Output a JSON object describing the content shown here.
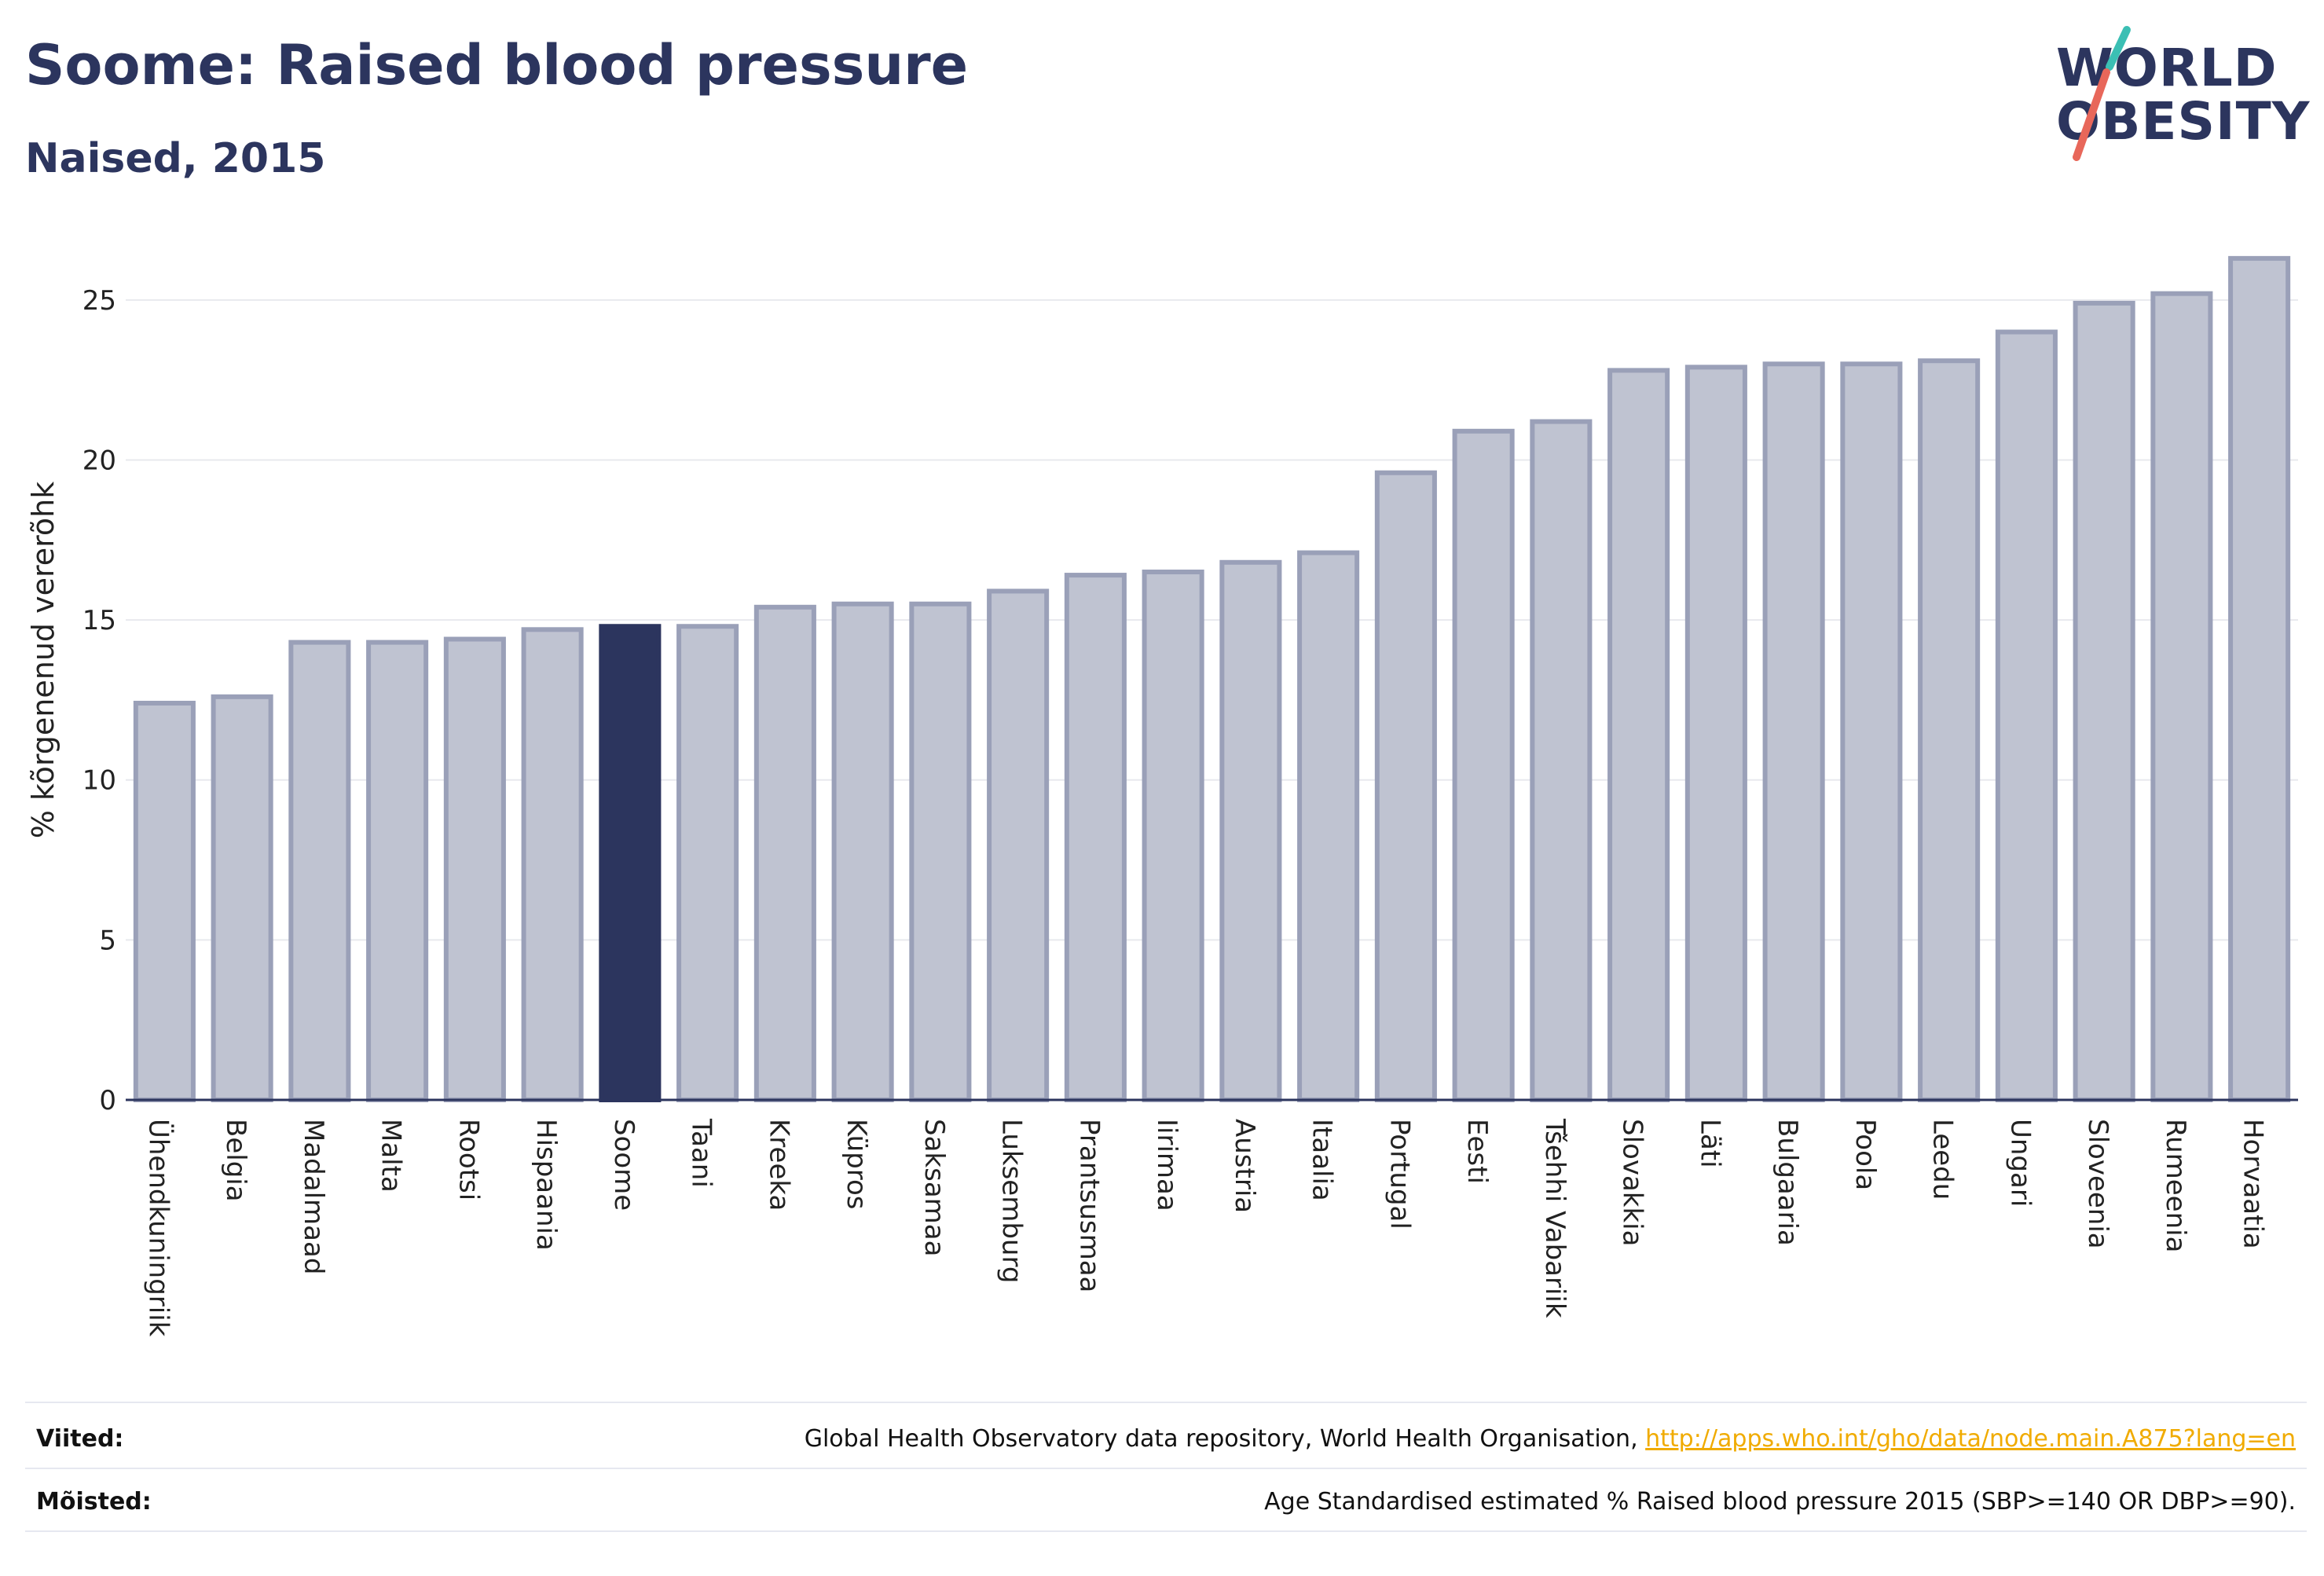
{
  "header": {
    "title": "Soome: Raised blood pressure",
    "subtitle": "Naised, 2015"
  },
  "logo": {
    "line1": "WORLD",
    "line2": "OBESITY"
  },
  "colors": {
    "highlight": "#2c355e",
    "bar": "#bfc3d1",
    "bar_border": "#9aa0b8",
    "logo_accent_teal": "#3bbfb4",
    "logo_accent_red": "#e8675a"
  },
  "chart_data": {
    "type": "bar",
    "title": "Soome: Raised blood pressure",
    "subtitle": "Naised, 2015",
    "xlabel": "",
    "ylabel": "% kõrgenenud vererõhk",
    "ylim": [
      0,
      27.5
    ],
    "yticks": [
      0,
      5,
      10,
      15,
      20,
      25
    ],
    "highlight_category": "Soome",
    "categories": [
      "Ühendkuningriik",
      "Belgia",
      "Madalmaad",
      "Malta",
      "Rootsi",
      "Hispaania",
      "Soome",
      "Taani",
      "Kreeka",
      "Küpros",
      "Saksamaa",
      "Luksemburg",
      "Prantsusmaa",
      "Iirimaa",
      "Austria",
      "Itaalia",
      "Portugal",
      "Eesti",
      "Tšehhi Vabariik",
      "Slovakkia",
      "Läti",
      "Bulgaaria",
      "Poola",
      "Leedu",
      "Ungari",
      "Sloveenia",
      "Rumeenia",
      "Horvaatia"
    ],
    "values": [
      12.4,
      12.6,
      14.3,
      14.3,
      14.4,
      14.7,
      14.8,
      14.8,
      15.4,
      15.5,
      15.5,
      15.9,
      16.4,
      16.5,
      16.8,
      17.1,
      19.6,
      20.9,
      21.2,
      22.8,
      22.9,
      23.0,
      23.0,
      23.1,
      24.0,
      24.9,
      25.2,
      26.3
    ],
    "grid": true,
    "legend": "none"
  },
  "footer": {
    "references_label": "Viited:",
    "references_text": "Global Health Observatory data repository, World Health Organisation, ",
    "references_link": "http://apps.who.int/gho/data/node.main.A875?lang=en",
    "definitions_label": "Mõisted:",
    "definitions_text": "Age Standardised estimated % Raised blood pressure 2015 (SBP>=140 OR DBP>=90)."
  }
}
